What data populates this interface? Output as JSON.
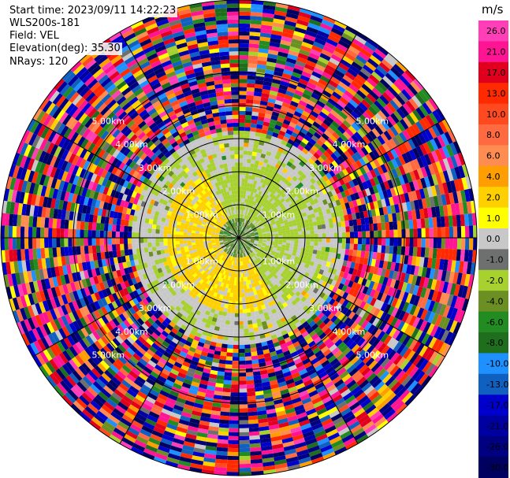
{
  "header": {
    "start_time": "Start time: 2023/09/11 14:22:23",
    "instrument": "WLS200s-181",
    "field": "Field: VEL",
    "elevation": "Elevation(deg): 35.30",
    "nrays": "NRays: 120"
  },
  "chart_data": {
    "type": "heatmap",
    "projection": "polar-ppi",
    "field": "VEL",
    "units": "m/s",
    "n_rays": 120,
    "elevation_deg": 35.3,
    "range_rings_km": [
      1,
      2,
      3,
      4,
      5
    ],
    "ring_labels": [
      "1.00km",
      "2.00km",
      "3.00km",
      "4.00km",
      "5.00km"
    ],
    "spokes_deg": [
      0,
      30,
      60,
      90,
      120,
      150,
      180,
      210,
      240,
      270,
      300,
      330
    ],
    "colorbar": {
      "label": "m/s",
      "ticks": [
        "26.0",
        "21.0",
        "17.0",
        "13.0",
        "10.0",
        "8.0",
        "6.0",
        "4.0",
        "2.0",
        "1.0",
        "0.0",
        "-1.0",
        "-2.0",
        "-4.0",
        "-6.0",
        "-8.0",
        "-10.0",
        "-13.0",
        "-17.0",
        "-21.0",
        "-26.0",
        "-30.0"
      ],
      "colors": [
        "#ff3eb8",
        "#ff1493",
        "#e0001e",
        "#ff2a00",
        "#ff4a20",
        "#ff6a40",
        "#ff8c50",
        "#ff9e00",
        "#ffd000",
        "#ffff00",
        "#c8c8c8",
        "#6e7070",
        "#a6d12e",
        "#6b8f23",
        "#228b22",
        "#1e6e1e",
        "#1e90ff",
        "#1060c0",
        "#0000cd",
        "#0000a0",
        "#000080",
        "#000060"
      ]
    },
    "regions": [
      {
        "range_km": [
          0,
          0.7
        ],
        "description": "mixed near-zero",
        "dominant_values": [
          0.0,
          -2.0
        ]
      },
      {
        "range_km": [
          0.7,
          2.2
        ],
        "sector": "north-east",
        "dominant_values": [
          -2.0,
          0.0
        ]
      },
      {
        "range_km": [
          0.7,
          2.2
        ],
        "sector": "south-west",
        "dominant_values": [
          4.0,
          2.0,
          0.0
        ]
      },
      {
        "range_km": [
          2.2,
          3.2
        ],
        "dominant_values": [
          0.0,
          -2.0,
          2.0
        ]
      },
      {
        "range_km": [
          3.2,
          6.0
        ],
        "description": "noise, all values",
        "dominant_values": []
      }
    ]
  }
}
